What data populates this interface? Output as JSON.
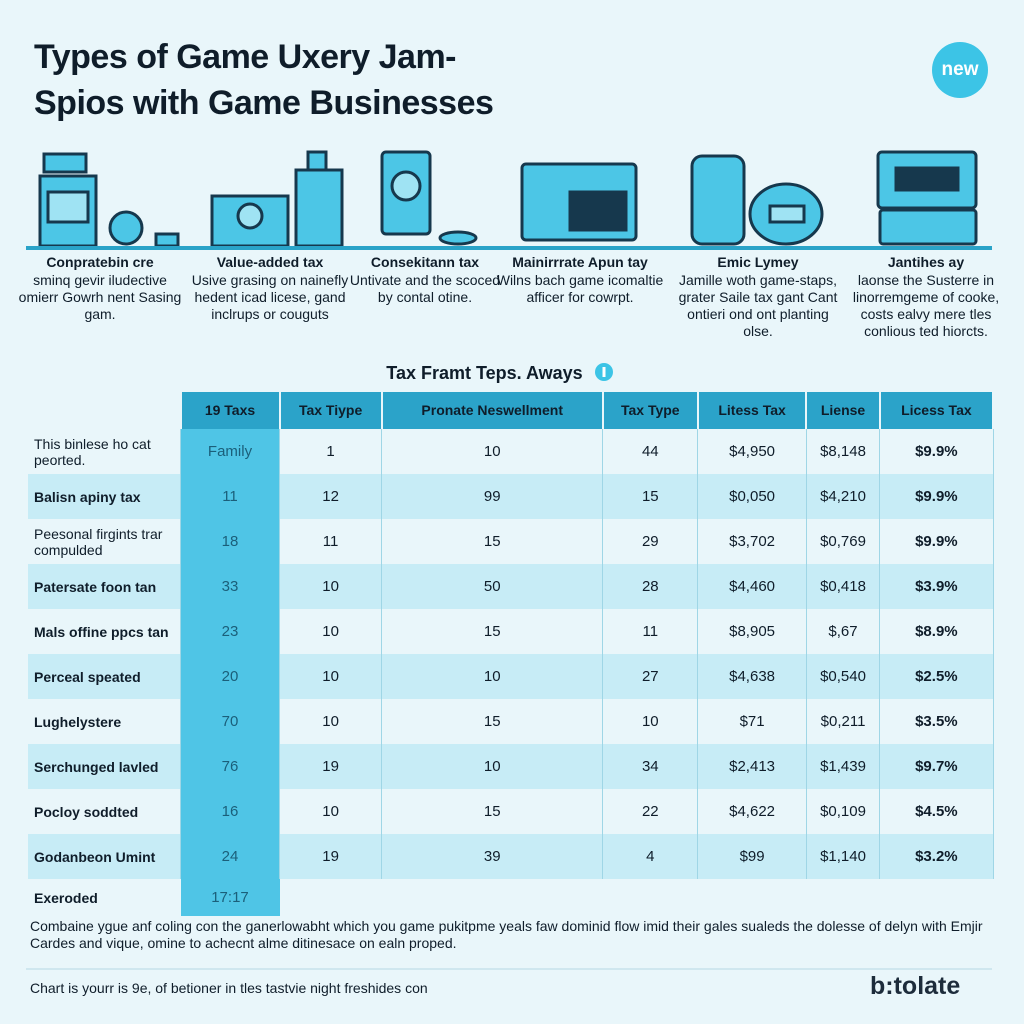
{
  "header": {
    "title_lines": [
      "Types of Game Uxery Jam-",
      "Spios with Game Businesses"
    ],
    "badge": "new"
  },
  "features": [
    {
      "title": "Conpratebin cre",
      "text": "sminq gevir iludective omierr Gowrh nent Sasing gam."
    },
    {
      "title": "Value-added tax",
      "text": "Usive grasing on nainefly hedent icad licese, gand inclrups or couguts"
    },
    {
      "title": "Consekitann tax",
      "text": "Untivate and the scoced by contal otine."
    },
    {
      "title": "Mainirrrate Apun tay",
      "text": "Wilns bach game icomaltie afficer for cowrpt."
    },
    {
      "title": "Emic Lymey",
      "text": "Jamille woth game-staps, grater Saile tax gant Cant ontieri ond ont planting olse."
    },
    {
      "title": "Jantihes ay",
      "text": "laonse the Susterre in linorremgeme of cooke, costs ealvy mere tles conlious ted hiorcts."
    }
  ],
  "table": {
    "title": "Tax Framt Teps. Aways",
    "headers": [
      "19 Taxs",
      "Tax Tiype",
      "Pronate Neswellment",
      "Tax Type",
      "Litess Tax",
      "Liense",
      "Licess Tax"
    ],
    "rows": [
      {
        "label": "This binlese ho cat peorted.",
        "cells": [
          "Family",
          "1",
          "10",
          "44",
          "$4,950",
          "$8,148",
          "$9.9%"
        ]
      },
      {
        "label": "Balisn apiny tax",
        "cells": [
          "11",
          "12",
          "99",
          "15",
          "$0,050",
          "$4,210",
          "$9.9%"
        ]
      },
      {
        "label": "Peesonal firgints trar compulded",
        "cells": [
          "18",
          "11",
          "15",
          "29",
          "$3,702",
          "$0,769",
          "$9.9%"
        ]
      },
      {
        "label": "Patersate foon tan",
        "cells": [
          "33",
          "10",
          "50",
          "28",
          "$4,460",
          "$0,418",
          "$3.9%"
        ]
      },
      {
        "label": "Mals offine ppcs tan",
        "cells": [
          "23",
          "10",
          "15",
          "11",
          "$8,905",
          "$,67",
          "$8.9%"
        ]
      },
      {
        "label": "Perceal speated",
        "cells": [
          "20",
          "10",
          "10",
          "27",
          "$4,638",
          "$0,540",
          "$2.5%"
        ]
      },
      {
        "label": "Lughelystere",
        "cells": [
          "70",
          "10",
          "15",
          "10",
          "$71",
          "$0,211",
          "$3.5%"
        ]
      },
      {
        "label": "Serchunged lavled",
        "cells": [
          "76",
          "19",
          "10",
          "34",
          "$2,413",
          "$1,439",
          "$9.7%"
        ]
      },
      {
        "label": "Pocloy soddted",
        "cells": [
          "16",
          "10",
          "15",
          "22",
          "$4,622",
          "$0,109",
          "$4.5%"
        ]
      },
      {
        "label": "Godanbeon Umint",
        "cells": [
          "24",
          "19",
          "39",
          "4",
          "$99",
          "$1,140",
          "$3.2%"
        ]
      },
      {
        "label": "Exeroded",
        "cells": [
          "17:17"
        ]
      }
    ]
  },
  "footer": {
    "text": "Combaine ygue anf coling con the ganerlowabht which you game pukitpme yeals faw dominid flow imid their gales sualeds the dolesse of delyn with Emjir Cardes and vique, omine to achecnt alme ditinesace on ealn proped.",
    "note": "Chart is yourr is 9e, of betioner in tles tastvie night freshides con",
    "logo": "b:tolate"
  }
}
